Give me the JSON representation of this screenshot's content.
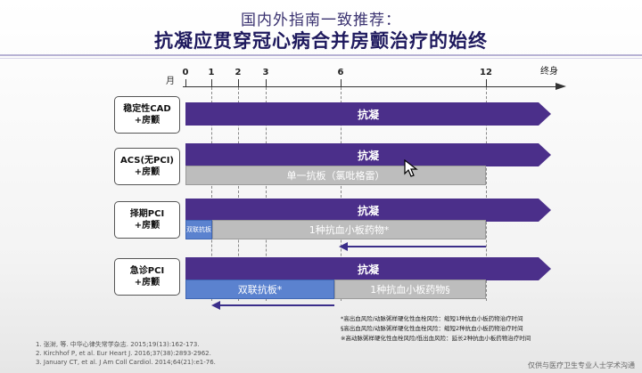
{
  "header": {
    "title": "国内外指南一致推荐：",
    "subtitle": "抗凝应贯穿冠心病合并房颤治疗的始终"
  },
  "timeline": {
    "axis_unit": "月",
    "ticks": [
      "0",
      "1",
      "2",
      "3",
      "6",
      "12"
    ],
    "end_label": "终身"
  },
  "rows": [
    {
      "label_line1": "稳定性CAD",
      "label_line2": "+房颤",
      "anticoag": "抗凝"
    },
    {
      "label_line1": "ACS(无PCI)",
      "label_line2": "+房颤",
      "anticoag": "抗凝",
      "single": "单一抗板（氯吡格雷）"
    },
    {
      "label_line1": "择期PCI",
      "label_line2": "+房颤",
      "anticoag": "抗凝",
      "dual": "双联抗板",
      "single": "1种抗血小板药物*"
    },
    {
      "label_line1": "急诊PCI",
      "label_line2": "+房颤",
      "anticoag": "抗凝",
      "dual": "双联抗板*",
      "single": "1种抗血小板药物§"
    }
  ],
  "footnotes": [
    "*高出血风险/动脉粥样硬化性血栓风险：缩短1种抗血小板药物治疗时间",
    "§高出血风险/动脉粥样硬化性血栓风险：缩短2种抗血小板药物治疗时间",
    "※高动脉粥样硬化性血栓风险/低出血风险：延长2种抗血小板药物治疗时间"
  ],
  "references": [
    "1.   张澍, 等. 中华心律失常学杂志. 2015;19(13):162-173.",
    "2.   Kirchhof P, et al. Eur Heart J. 2016;37(38):2893-2962.",
    "3.   January CT, et al. J Am Coll Cardiol. 2014;64(21):e1-76."
  ],
  "source_note": "仅供与医疗卫生专业人士学术沟通",
  "colors": {
    "anticoag": "#4b2f8a",
    "single": "#bdbdbd",
    "dual": "#5b82cf",
    "title": "#1f1a5e"
  }
}
